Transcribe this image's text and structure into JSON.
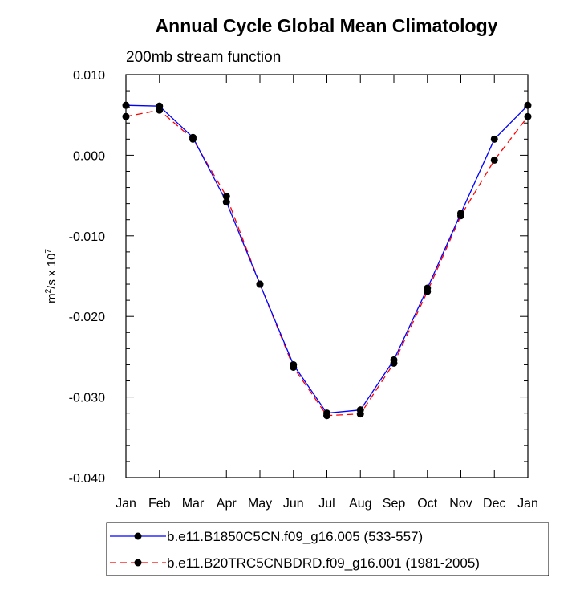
{
  "chart_data": {
    "type": "line",
    "title": "Annual Cycle Global Mean Climatology",
    "subtitle": "200mb stream function",
    "ylabel": {
      "base": "m",
      "sup1": "2",
      "mid": "/s x 10",
      "sup2": "7"
    },
    "xlabel": "",
    "categories": [
      "Jan",
      "Feb",
      "Mar",
      "Apr",
      "May",
      "Jun",
      "Jul",
      "Aug",
      "Sep",
      "Oct",
      "Nov",
      "Dec",
      "Jan"
    ],
    "ylim": [
      -0.04,
      0.01
    ],
    "yticks": [
      0.01,
      0.0,
      -0.01,
      -0.02,
      -0.03,
      -0.04
    ],
    "ytick_labels": [
      "0.010",
      "0.000",
      "-0.010",
      "-0.020",
      "-0.030",
      "-0.040"
    ],
    "grid": false,
    "legend_position": "bottom",
    "series": [
      {
        "name": "b.e11.B1850C5CN.f09_g16.005 (533-557)",
        "color": "#0000ff",
        "style": "solid",
        "values": [
          0.0062,
          0.0061,
          0.0022,
          -0.0058,
          -0.016,
          -0.026,
          -0.032,
          -0.0316,
          -0.0254,
          -0.0165,
          -0.0072,
          0.002,
          0.0062
        ]
      },
      {
        "name": "b.e11.B20TRC5CNBDRD.f09_g16.001 (1981-2005)",
        "color": "#ff0000",
        "style": "dashed",
        "values": [
          0.0048,
          0.0056,
          0.002,
          -0.0051,
          -0.016,
          -0.0263,
          -0.0323,
          -0.0321,
          -0.0258,
          -0.0169,
          -0.0075,
          -0.0006,
          0.0048
        ]
      }
    ]
  }
}
